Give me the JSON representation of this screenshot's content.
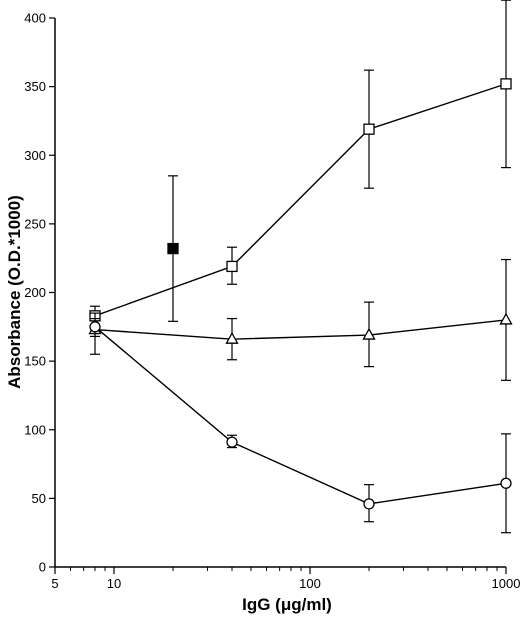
{
  "chart_data": {
    "type": "line",
    "xlabel": "IgG (μg/ml)",
    "ylabel": "Absorbance (O.D.*1000)",
    "xscale": "log",
    "xlim": [
      5,
      1000
    ],
    "ylim": [
      0,
      400
    ],
    "x_ticks": [
      5,
      10,
      100,
      1000
    ],
    "x_tick_labels": [
      "5",
      "10",
      "100",
      "1000"
    ],
    "y_ticks": [
      0,
      50,
      100,
      150,
      200,
      250,
      300,
      350,
      400
    ],
    "y_tick_labels": [
      "0",
      "50",
      "100",
      "150",
      "200",
      "250",
      "300",
      "350",
      "400"
    ],
    "grid": false,
    "legend": "none",
    "series": [
      {
        "marker": "open-square",
        "connected": true,
        "points": [
          {
            "x": 8,
            "y": 183,
            "err_low": 176,
            "err_high": 190
          },
          {
            "x": 40,
            "y": 219,
            "err_low": 206,
            "err_high": 233
          },
          {
            "x": 200,
            "y": 319,
            "err_low": 276,
            "err_high": 362
          },
          {
            "x": 1000,
            "y": 352,
            "err_low": 291,
            "err_high": 413
          }
        ]
      },
      {
        "marker": "open-triangle",
        "connected": true,
        "points": [
          {
            "x": 8,
            "y": 173,
            "err_low": 155,
            "err_high": 185
          },
          {
            "x": 40,
            "y": 166,
            "err_low": 151,
            "err_high": 181
          },
          {
            "x": 200,
            "y": 169,
            "err_low": 146,
            "err_high": 193
          },
          {
            "x": 1000,
            "y": 180,
            "err_low": 136,
            "err_high": 224
          }
        ]
      },
      {
        "marker": "open-circle",
        "connected": true,
        "points": [
          {
            "x": 8,
            "y": 175,
            "err_low": 168,
            "err_high": 181
          },
          {
            "x": 40,
            "y": 91,
            "err_low": 87,
            "err_high": 96
          },
          {
            "x": 200,
            "y": 46,
            "err_low": 33,
            "err_high": 60
          },
          {
            "x": 1000,
            "y": 61,
            "err_low": 25,
            "err_high": 97
          }
        ]
      },
      {
        "marker": "filled-square",
        "connected": false,
        "points": [
          {
            "x": 20,
            "y": 232,
            "err_low": 179,
            "err_high": 285
          }
        ]
      }
    ]
  }
}
